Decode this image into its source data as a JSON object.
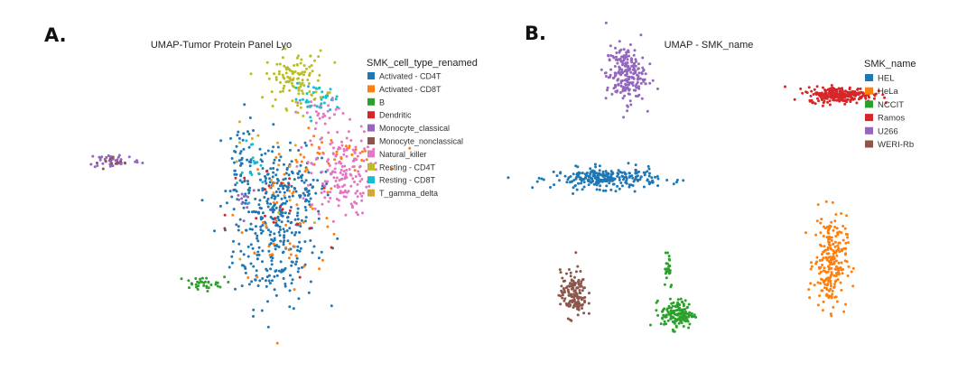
{
  "panel_a_letter": "A.",
  "panel_b_letter": "B.",
  "chart_data": [
    {
      "type": "scatter",
      "title": "UMAP-Tumor Protein Panel Lyo",
      "xlabel": "",
      "ylabel": "",
      "grid": false,
      "xlim": [
        0,
        100
      ],
      "ylim": [
        0,
        100
      ],
      "legend_title": "SMK_cell_type_renamed",
      "legend_position": "right",
      "series": [
        {
          "name": "Activated - CD4T",
          "color": "#1f77b4"
        },
        {
          "name": "Activated - CD8T",
          "color": "#ff7f0e"
        },
        {
          "name": "B",
          "color": "#2ca02c"
        },
        {
          "name": "Dendritic",
          "color": "#d62728"
        },
        {
          "name": "Monocyte_classical",
          "color": "#9467bd"
        },
        {
          "name": "Monocyte_nonclassical",
          "color": "#8c564b"
        },
        {
          "name": "Natural_killer",
          "color": "#e377c2"
        },
        {
          "name": "Resting - CD4T",
          "color": "#bcbd22"
        },
        {
          "name": "Resting - CD8T",
          "color": "#17becf"
        },
        {
          "name": "T_gamma_delta",
          "color": "#d4a73a"
        }
      ],
      "clusters": [
        {
          "series": 0,
          "cx": 68,
          "cy": 34,
          "sx": 7,
          "sy": 12,
          "n": 260
        },
        {
          "series": 0,
          "cx": 71,
          "cy": 52,
          "sx": 8,
          "sy": 7,
          "n": 160
        },
        {
          "series": 0,
          "cx": 57,
          "cy": 60,
          "sx": 2.5,
          "sy": 9,
          "n": 50
        },
        {
          "series": 1,
          "cx": 74,
          "cy": 45,
          "sx": 9,
          "sy": 12,
          "n": 55
        },
        {
          "series": 1,
          "cx": 88,
          "cy": 64,
          "sx": 8,
          "sy": 3,
          "n": 30
        },
        {
          "series": 2,
          "cx": 43,
          "cy": 18,
          "sx": 4,
          "sy": 1.2,
          "n": 35
        },
        {
          "series": 3,
          "cx": 70,
          "cy": 42,
          "sx": 9,
          "sy": 12,
          "n": 22
        },
        {
          "series": 4,
          "cx": 14,
          "cy": 62,
          "sx": 4.5,
          "sy": 1.4,
          "n": 45
        },
        {
          "series": 4,
          "cx": 58,
          "cy": 49,
          "sx": 2,
          "sy": 3,
          "n": 12
        },
        {
          "series": 5,
          "cx": 14,
          "cy": 61,
          "sx": 3,
          "sy": 1.2,
          "n": 12
        },
        {
          "series": 6,
          "cx": 90,
          "cy": 58,
          "sx": 5,
          "sy": 8,
          "n": 170
        },
        {
          "series": 6,
          "cx": 84,
          "cy": 79,
          "sx": 4,
          "sy": 2.5,
          "n": 30
        },
        {
          "series": 7,
          "cx": 75,
          "cy": 91,
          "sx": 5,
          "sy": 5,
          "n": 120
        },
        {
          "series": 8,
          "cx": 82,
          "cy": 84,
          "sx": 4,
          "sy": 2.5,
          "n": 35
        },
        {
          "series": 8,
          "cx": 62,
          "cy": 58,
          "sx": 3,
          "sy": 8,
          "n": 15
        },
        {
          "series": 9,
          "cx": 70,
          "cy": 55,
          "sx": 10,
          "sy": 10,
          "n": 18
        }
      ]
    },
    {
      "type": "scatter",
      "title": "UMAP - SMK_name",
      "xlabel": "",
      "ylabel": "",
      "grid": false,
      "xlim": [
        0,
        100
      ],
      "ylim": [
        0,
        100
      ],
      "legend_title": "SMK_name",
      "legend_position": "right",
      "series": [
        {
          "name": "HEL",
          "color": "#1f77b4"
        },
        {
          "name": "HeLa",
          "color": "#ff7f0e"
        },
        {
          "name": "NCCIT",
          "color": "#2ca02c"
        },
        {
          "name": "Ramos",
          "color": "#d62728"
        },
        {
          "name": "U266",
          "color": "#9467bd"
        },
        {
          "name": "WERI-Rb",
          "color": "#8c564b"
        }
      ],
      "clusters": [
        {
          "series": 0,
          "cx": 17,
          "cy": 57,
          "sx": 8,
          "sy": 1.8,
          "n": 260
        },
        {
          "series": 1,
          "cx": 86,
          "cy": 28,
          "sx": 2.5,
          "sy": 8,
          "n": 230
        },
        {
          "series": 2,
          "cx": 39,
          "cy": 10,
          "sx": 2.5,
          "sy": 2.5,
          "n": 150
        },
        {
          "series": 2,
          "cx": 36,
          "cy": 27,
          "sx": 0.8,
          "sy": 4,
          "n": 25
        },
        {
          "series": 3,
          "cx": 89,
          "cy": 86,
          "sx": 5,
          "sy": 1.3,
          "n": 260
        },
        {
          "series": 4,
          "cx": 23,
          "cy": 93,
          "sx": 3,
          "sy": 5,
          "n": 220
        },
        {
          "series": 5,
          "cx": 7,
          "cy": 17,
          "sx": 2,
          "sy": 4,
          "n": 150
        }
      ]
    }
  ]
}
